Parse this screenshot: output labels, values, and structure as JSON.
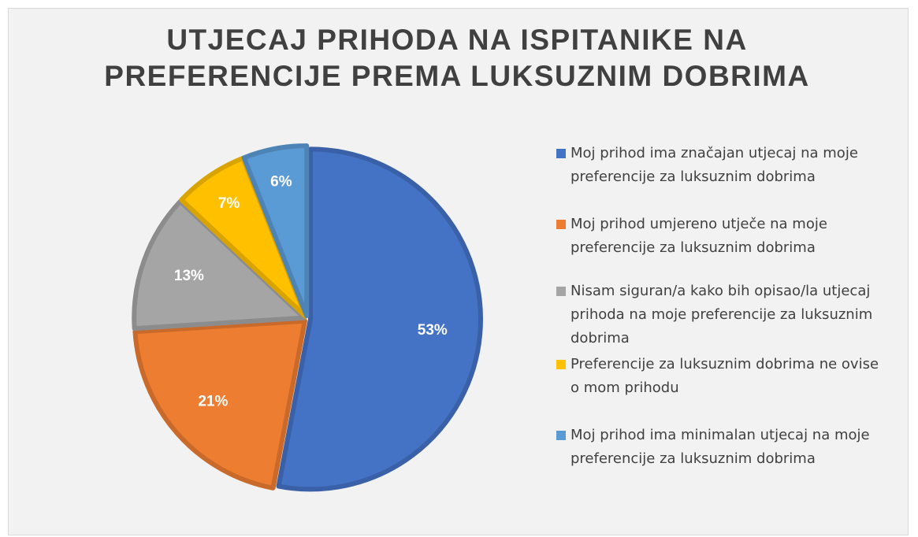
{
  "chart_data": {
    "type": "pie",
    "title": "UTJECAJ PRIHODA NA ISPITANIKE NA PREFERENCIJE PREMA LUKSUZNIM DOBRIMA",
    "categories": [
      "Moj prihod ima značajan utjecaj na moje preferencije za luksuznim dobrima",
      "Moj prihod umjereno utječe na moje preferencije za luksuznim dobrima",
      "Nisam siguran/a kako bih opisao/la utjecaj prihoda na moje preferencije za luksuznim dobrima",
      "Preferencije za luksuznim dobrima ne ovise o mom prihodu",
      "Moj prihod ima minimalan utjecaj na moje preferencije za luksuznim dobrima"
    ],
    "values": [
      53,
      21,
      13,
      7,
      6
    ],
    "value_labels": [
      "53%",
      "21%",
      "13%",
      "7%",
      "6%"
    ],
    "colors": [
      "#4472c4",
      "#ed7d31",
      "#a5a5a5",
      "#ffc000",
      "#5b9bd5"
    ],
    "legend": "right"
  }
}
